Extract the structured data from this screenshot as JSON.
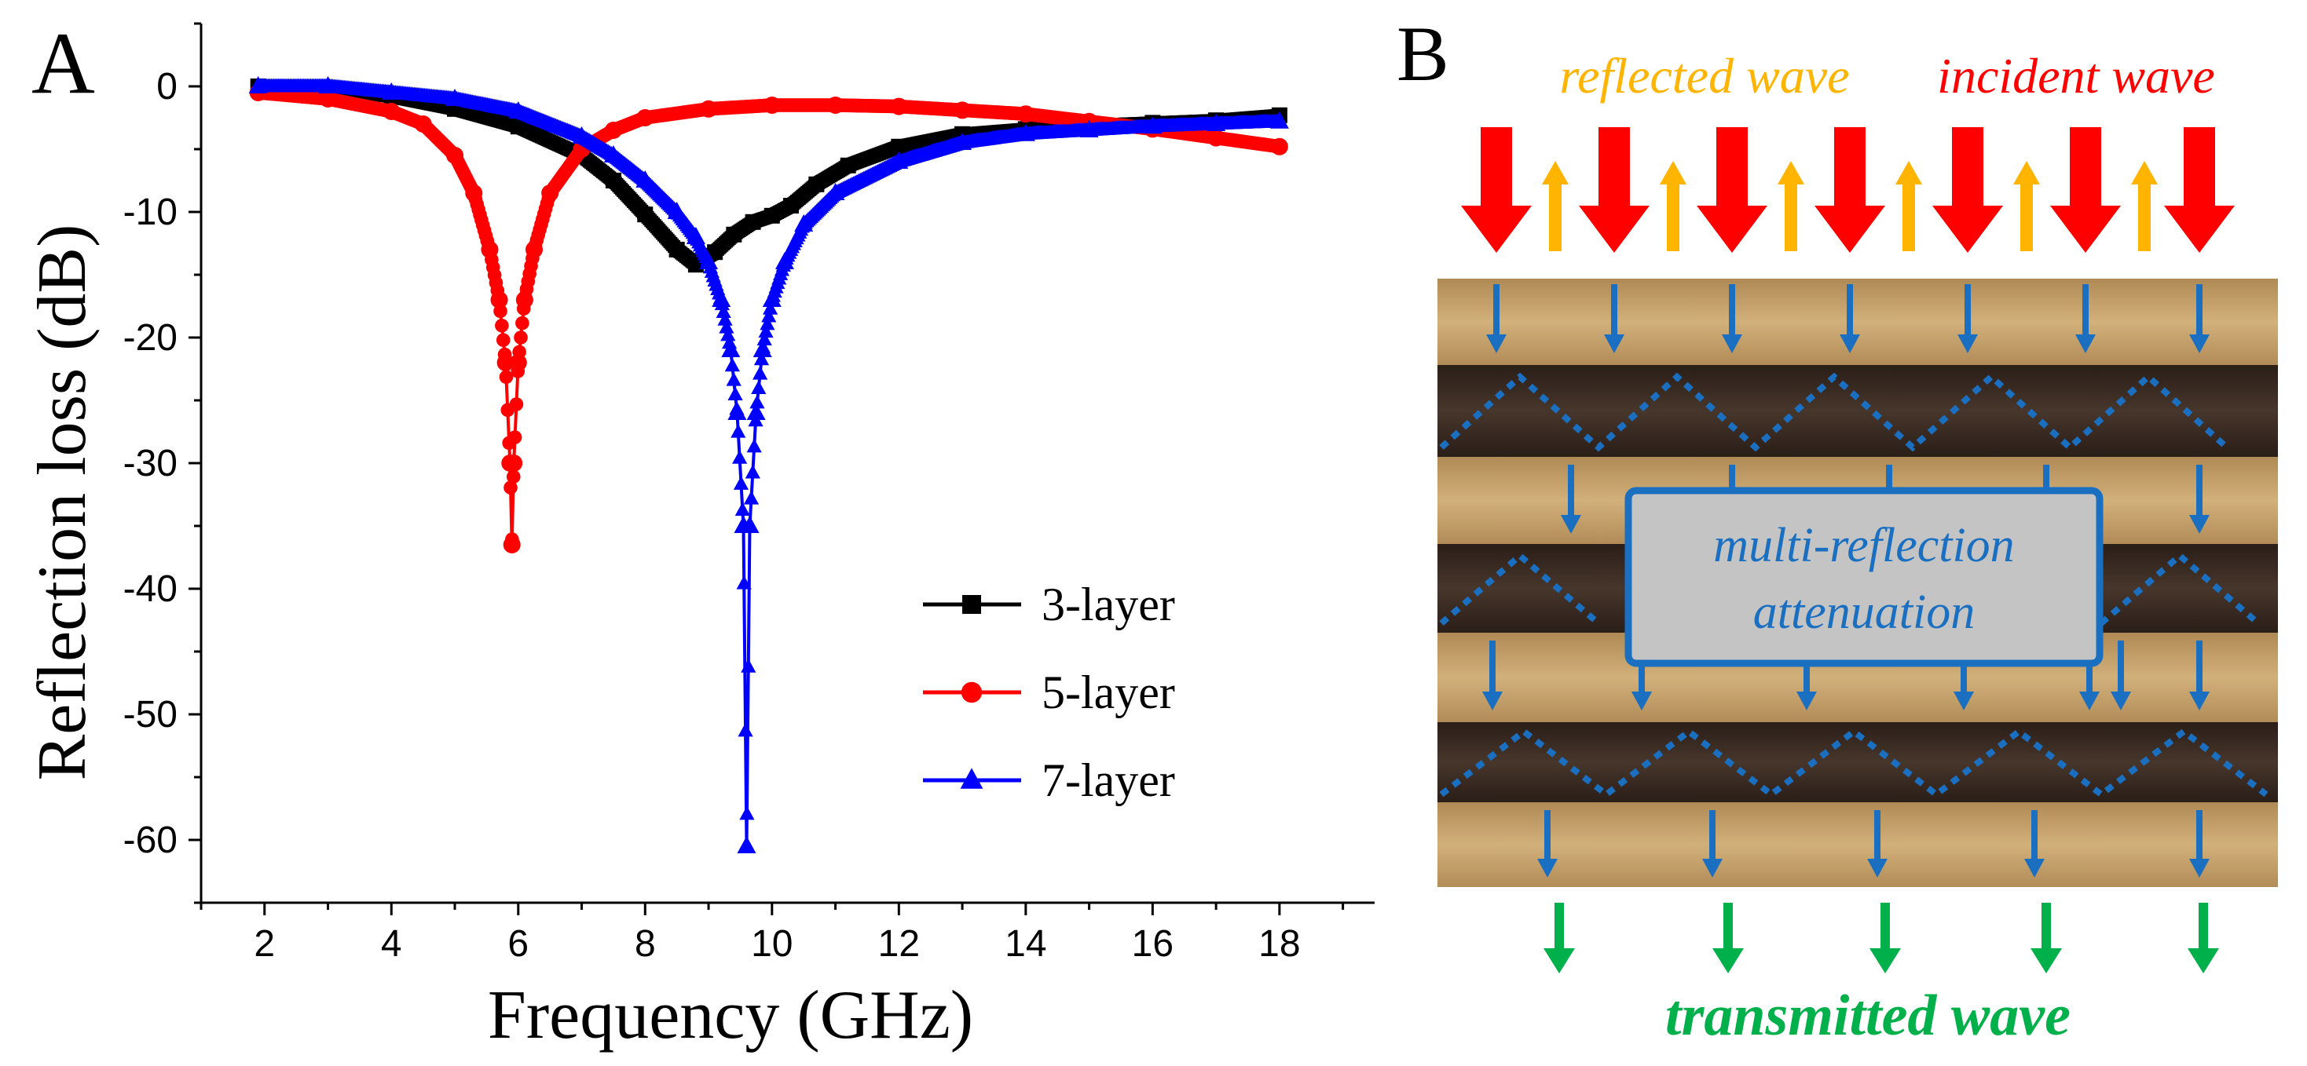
{
  "panel_a": {
    "label": "A"
  },
  "panel_b": {
    "label": "B",
    "reflected_label": "reflected wave",
    "incident_label": "incident wave",
    "box_line1": "multi-reflection",
    "box_line2": "attenuation",
    "transmitted_label": "transmitted wave",
    "colors": {
      "incident": "#ff0000",
      "reflected": "#ffb400",
      "internal": "#1a6fc0",
      "transmitted": "#00b04a",
      "light_layer": "#c9a56e",
      "dark_layer": "#3b2c23",
      "box_fill": "#c4c4c4"
    }
  },
  "chart_data": {
    "type": "line",
    "title": "",
    "xlabel": "Frequency (GHz)",
    "ylabel": "Reflection loss (dB)",
    "xlim": [
      1,
      19.5
    ],
    "ylim": [
      -65,
      5
    ],
    "xticks": [
      2,
      4,
      6,
      8,
      10,
      12,
      14,
      16,
      18
    ],
    "yticks": [
      0,
      -10,
      -20,
      -30,
      -40,
      -50,
      -60
    ],
    "legend_position": "lower-right",
    "series": [
      {
        "name": "3-layer",
        "color": "#000000",
        "marker": "square",
        "x": [
          1.9,
          3,
          4,
          5,
          6,
          7,
          7.5,
          8,
          8.5,
          8.8,
          9.1,
          9.4,
          9.7,
          10,
          10.3,
          10.7,
          11.2,
          12,
          13,
          14,
          15,
          16,
          17,
          18
        ],
        "y": [
          0,
          -0.3,
          -0.8,
          -1.8,
          -3.2,
          -5.5,
          -7.5,
          -10.2,
          -13,
          -14.2,
          -13.2,
          -11.8,
          -10.8,
          -10.3,
          -9.5,
          -7.8,
          -6.3,
          -4.8,
          -3.8,
          -3.4,
          -3.1,
          -2.9,
          -2.7,
          -2.3
        ]
      },
      {
        "name": "5-layer",
        "color": "#ff0000",
        "marker": "circle",
        "x": [
          1.9,
          3,
          4,
          4.5,
          5,
          5.3,
          5.55,
          5.7,
          5.8,
          5.87,
          5.9,
          5.93,
          6.0,
          6.1,
          6.25,
          6.5,
          7,
          7.5,
          8,
          9,
          10,
          11,
          12,
          13,
          14,
          15,
          16,
          17,
          18
        ],
        "y": [
          -0.5,
          -1,
          -2,
          -3,
          -5.5,
          -8.5,
          -13,
          -17,
          -22,
          -30,
          -36.5,
          -30,
          -22,
          -17,
          -13,
          -8.5,
          -5,
          -3.5,
          -2.5,
          -1.8,
          -1.5,
          -1.5,
          -1.6,
          -1.9,
          -2.2,
          -2.8,
          -3.4,
          -4.1,
          -4.8
        ]
      },
      {
        "name": "7-layer",
        "color": "#0000ff",
        "marker": "triangle",
        "x": [
          1.9,
          3,
          4,
          5,
          6,
          7,
          7.5,
          8,
          8.5,
          8.8,
          9.0,
          9.2,
          9.35,
          9.45,
          9.55,
          9.6,
          9.65,
          9.75,
          9.85,
          10.0,
          10.2,
          10.5,
          11,
          12,
          13,
          14,
          15,
          16,
          17,
          18
        ],
        "y": [
          0,
          0,
          -0.5,
          -1,
          -2,
          -4,
          -5.5,
          -7.5,
          -10,
          -12,
          -14,
          -17,
          -21,
          -26,
          -35,
          -60.5,
          -35,
          -26,
          -21,
          -17,
          -14,
          -11,
          -8.5,
          -6,
          -4.5,
          -3.8,
          -3.5,
          -3.2,
          -3,
          -2.8
        ]
      }
    ]
  }
}
